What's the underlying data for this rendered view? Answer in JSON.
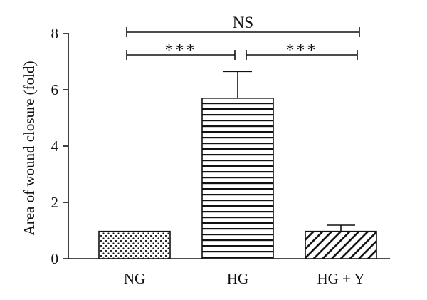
{
  "chart_data": {
    "type": "bar",
    "ylabel": "Area of wound closure (fold)",
    "xlabel": "",
    "ylim": [
      0,
      8
    ],
    "yticks": [
      0,
      2,
      4,
      6,
      8
    ],
    "categories": [
      "NG",
      "HG",
      "HG + Y"
    ],
    "values": [
      0.97,
      5.7,
      0.97
    ],
    "error_upper": [
      0.0,
      0.95,
      0.22
    ],
    "patterns": [
      "dots",
      "horizontal-lines",
      "diagonal-lines"
    ],
    "significance": [
      {
        "from": 0,
        "to": 2,
        "label": "NS",
        "level": 2
      },
      {
        "from": 0,
        "to": 1,
        "label": "***",
        "level": 1
      },
      {
        "from": 1,
        "to": 2,
        "label": "***",
        "level": 1
      }
    ],
    "colors": {
      "bar_fill": "#ffffff",
      "stroke": "#111111"
    }
  }
}
